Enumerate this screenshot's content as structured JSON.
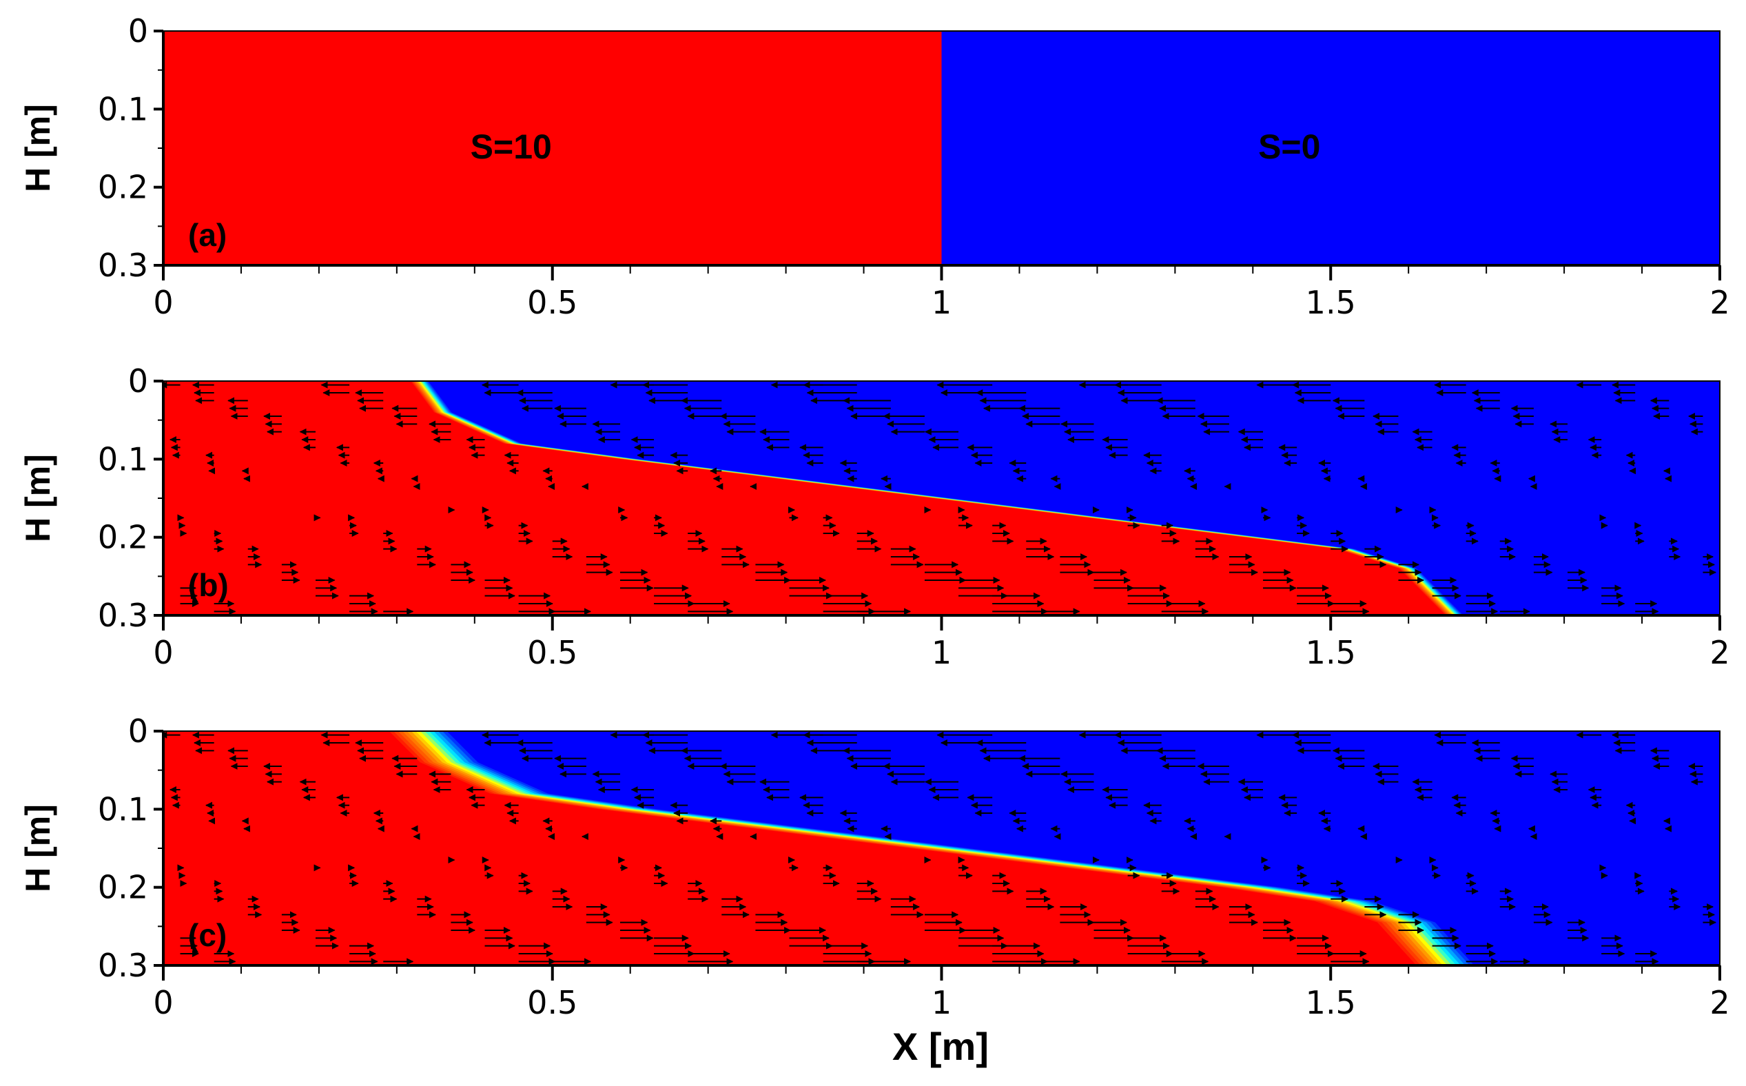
{
  "chart_data": [
    {
      "type": "heatmap",
      "panel": "(a)",
      "ylabel": "H [m]",
      "xlim": [
        0,
        2
      ],
      "ylim": [
        0,
        0.3
      ],
      "x_ticks": [
        "0",
        "0.5",
        "1",
        "1.5",
        "2"
      ],
      "y_ticks": [
        "0",
        "0.1",
        "0.2",
        "0.3"
      ],
      "regions": [
        {
          "label": "S=10",
          "x_range": [
            0,
            1
          ],
          "color": "#ff0000"
        },
        {
          "label": "S=0",
          "x_range": [
            1,
            2
          ],
          "color": "#0000ff"
        }
      ],
      "interface": [
        [
          1.0,
          0.0
        ],
        [
          1.0,
          0.3
        ]
      ],
      "arrows": false
    },
    {
      "type": "heatmap",
      "panel": "(b)",
      "ylabel": "H [m]",
      "xlim": [
        0,
        2
      ],
      "ylim": [
        0,
        0.3
      ],
      "x_ticks": [
        "0",
        "0.5",
        "1",
        "1.5",
        "2"
      ],
      "y_ticks": [
        "0",
        "0.1",
        "0.2",
        "0.3"
      ],
      "interface": [
        [
          0.33,
          0.0
        ],
        [
          0.36,
          0.04
        ],
        [
          0.45,
          0.08
        ],
        [
          0.6,
          0.1
        ],
        [
          0.8,
          0.125
        ],
        [
          1.0,
          0.15
        ],
        [
          1.2,
          0.175
        ],
        [
          1.4,
          0.2
        ],
        [
          1.52,
          0.215
        ],
        [
          1.6,
          0.24
        ],
        [
          1.66,
          0.3
        ]
      ],
      "mixing_width": 0.012,
      "arrows": true
    },
    {
      "type": "heatmap",
      "panel": "(c)",
      "ylabel": "H [m]",
      "xlabel": "X [m]",
      "xlim": [
        0,
        2
      ],
      "ylim": [
        0,
        0.3
      ],
      "x_ticks": [
        "0",
        "0.5",
        "1",
        "1.5",
        "2"
      ],
      "y_ticks": [
        "0",
        "0.1",
        "0.2",
        "0.3"
      ],
      "interface": [
        [
          0.33,
          0.0
        ],
        [
          0.37,
          0.04
        ],
        [
          0.46,
          0.08
        ],
        [
          0.6,
          0.1
        ],
        [
          0.8,
          0.125
        ],
        [
          1.0,
          0.15
        ],
        [
          1.2,
          0.175
        ],
        [
          1.4,
          0.2
        ],
        [
          1.52,
          0.218
        ],
        [
          1.6,
          0.245
        ],
        [
          1.65,
          0.3
        ]
      ],
      "mixing_width": 0.04,
      "arrows": true
    }
  ],
  "colors": {
    "salt": "#ff0000",
    "fresh": "#0000ff",
    "mix_mid": "#ffff00",
    "mix_fresh": "#00ffff"
  }
}
